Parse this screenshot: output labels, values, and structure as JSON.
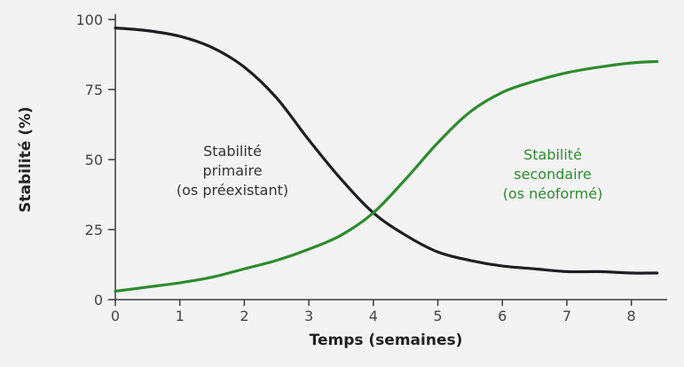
{
  "chart_data": {
    "type": "line",
    "title": "",
    "xlabel": "Temps (semaines)",
    "ylabel": "Stabilité (%)",
    "xlim": [
      0,
      8.5
    ],
    "ylim": [
      0,
      100
    ],
    "x_ticks": [
      "0",
      "1",
      "2",
      "3",
      "4",
      "5",
      "6",
      "7",
      "8"
    ],
    "y_ticks": [
      "0",
      "25",
      "50",
      "75",
      "100"
    ],
    "grid": false,
    "legend": "none",
    "series": [
      {
        "name": "Stabilité primaire (os préexistant)",
        "color": "#1f1f22",
        "x": [
          0,
          0.5,
          1,
          1.5,
          2,
          2.5,
          3,
          3.5,
          4,
          4.5,
          5,
          5.5,
          6,
          6.5,
          7,
          7.5,
          8,
          8.4
        ],
        "y": [
          97,
          96,
          94,
          90,
          83,
          72,
          57,
          43,
          31,
          23,
          17,
          14,
          12,
          11,
          10,
          10,
          9.5,
          9.5
        ]
      },
      {
        "name": "Stabilité secondaire (os néoformé)",
        "color": "#2e8b2e",
        "x": [
          0,
          0.5,
          1,
          1.5,
          2,
          2.5,
          3,
          3.5,
          4,
          4.5,
          5,
          5.5,
          6,
          6.5,
          7,
          7.5,
          8,
          8.4
        ],
        "y": [
          3,
          4.5,
          6,
          8,
          11,
          14,
          18,
          23,
          31,
          43,
          56,
          67,
          74,
          78,
          81,
          83,
          84.5,
          85
        ]
      }
    ],
    "annotations": [
      {
        "lines": [
          "Stabilité",
          "primaire",
          "(os préexistant)"
        ],
        "series": 0
      },
      {
        "lines": [
          "Stabilité",
          "secondaire",
          "(os néoformé)"
        ],
        "series": 1
      }
    ]
  }
}
